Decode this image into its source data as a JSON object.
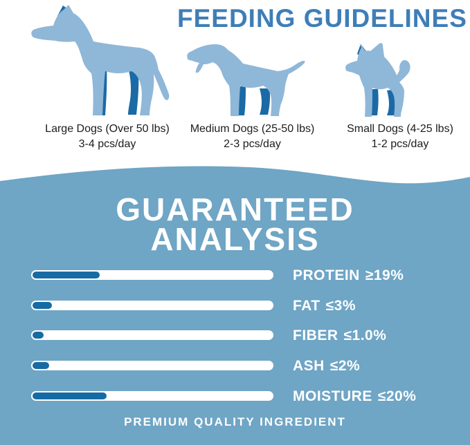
{
  "header": {
    "title": "FEEDING GUIDELINES"
  },
  "feeding_guidelines": {
    "dogs": [
      {
        "id": "large",
        "size_label": "Large Dogs (Over 50 lbs)",
        "serving": "3-4 pcs/day"
      },
      {
        "id": "medium",
        "size_label": "Medium Dogs (25-50 lbs)",
        "serving": "2-3 pcs/day"
      },
      {
        "id": "small",
        "size_label": "Small Dogs (4-25 lbs)",
        "serving": "1-2 pcs/day"
      }
    ]
  },
  "analysis": {
    "title_line1": "GUARANTEED",
    "title_line2": "ANALYSIS",
    "rows": [
      {
        "label": "PROTEIN",
        "value": "≥19%",
        "fill_percent": 28
      },
      {
        "label": "FAT",
        "value": "≤3%",
        "fill_percent": 8
      },
      {
        "label": "FIBER",
        "value": "≤1.0%",
        "fill_percent": 4.5
      },
      {
        "label": "ASH",
        "value": "≤2%",
        "fill_percent": 7
      },
      {
        "label": "MOISTURE",
        "value": "≤20%",
        "fill_percent": 31
      }
    ]
  },
  "footer": {
    "text": "PREMIUM QUALITY INGREDIENT"
  },
  "colors": {
    "heading_blue": "#3e7eb7",
    "section_blue": "#6fa5c5",
    "bar_fill_blue": "#176ba4",
    "bar_track_white": "#ffffff",
    "dog_body_light": "#8fb7d8",
    "dog_accent_dark": "#1a6aa6",
    "caption_text": "#1c1c1c"
  },
  "chart_data": {
    "type": "bar",
    "title": "GUARANTEED ANALYSIS",
    "categories": [
      "PROTEIN",
      "FAT",
      "FIBER",
      "ASH",
      "MOISTURE"
    ],
    "values_text": [
      "≥19%",
      "≤3%",
      "≤1.0%",
      "≤2%",
      "≤20%"
    ],
    "bar_fill_fraction_of_track": [
      0.28,
      0.08,
      0.045,
      0.07,
      0.31
    ],
    "orientation": "horizontal",
    "legend": false,
    "grid": false
  }
}
